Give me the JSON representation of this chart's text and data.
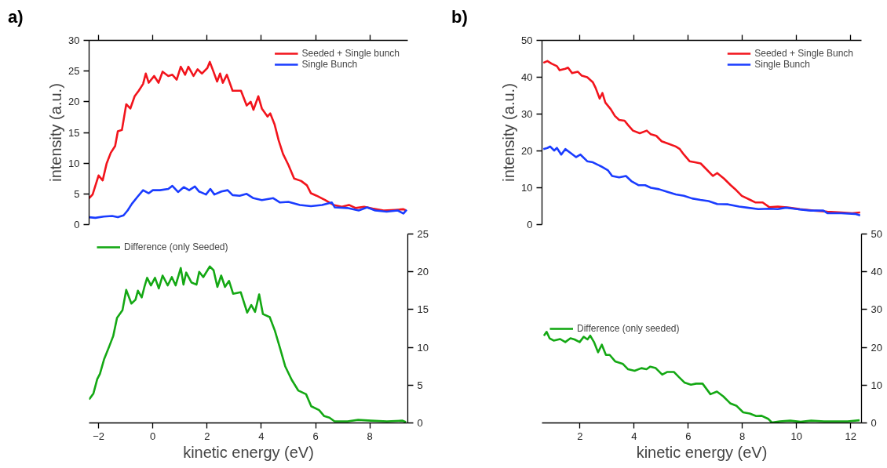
{
  "chart_data": [
    {
      "type": "line",
      "title": "a)",
      "ylabel": "intensity (a.u.)",
      "xlim": [
        -2.35,
        9.4
      ],
      "xticks": [
        -2,
        0,
        2,
        4,
        6,
        8
      ],
      "ylim": [
        0,
        30
      ],
      "yticks": [
        0,
        5,
        10,
        15,
        20,
        25,
        30
      ],
      "tick_labels": "y",
      "legend": "top right",
      "series": [
        {
          "name": "Seeded + Single bunch",
          "color": "#f2141c",
          "x": [
            -2.35,
            -2.22,
            -2.0,
            -1.85,
            -1.7,
            -1.55,
            -1.39,
            -1.29,
            -1.14,
            -0.98,
            -0.83,
            -0.67,
            -0.52,
            -0.36,
            -0.26,
            -0.15,
            0.05,
            0.21,
            0.36,
            0.57,
            0.72,
            0.88,
            1.03,
            1.19,
            1.31,
            1.5,
            1.65,
            1.81,
            2.01,
            2.1,
            2.22,
            2.37,
            2.48,
            2.58,
            2.73,
            2.94,
            3.25,
            3.46,
            3.61,
            3.71,
            3.89,
            4.02,
            4.23,
            4.33,
            4.49,
            4.64,
            4.8,
            5.0,
            5.21,
            5.47,
            5.68,
            5.83,
            6.04,
            6.35,
            6.66,
            6.97,
            7.23,
            7.48,
            7.79,
            8.1,
            8.51,
            8.93,
            9.24,
            9.34
          ],
          "values": [
            4.3,
            4.9,
            8.0,
            7.2,
            10.0,
            11.7,
            12.8,
            15.2,
            15.4,
            19.6,
            18.9,
            20.9,
            21.8,
            22.9,
            24.6,
            23.1,
            24.2,
            23.1,
            24.9,
            24.2,
            24.4,
            23.6,
            25.7,
            24.4,
            25.7,
            24.2,
            25.3,
            24.6,
            25.5,
            26.5,
            25.1,
            23.3,
            24.6,
            23.1,
            24.4,
            21.8,
            21.8,
            19.4,
            20.0,
            18.7,
            20.9,
            18.9,
            17.6,
            18.1,
            16.3,
            13.7,
            11.5,
            9.7,
            7.5,
            7.1,
            6.4,
            5.1,
            4.7,
            4.0,
            3.2,
            2.9,
            3.2,
            2.7,
            2.9,
            2.6,
            2.3,
            2.4,
            2.5,
            2.3
          ]
        },
        {
          "name": "Single Bunch",
          "color": "#1a3cff",
          "x": [
            -2.35,
            -2.12,
            -1.81,
            -1.5,
            -1.29,
            -1.08,
            -0.93,
            -0.77,
            -0.57,
            -0.36,
            -0.15,
            0.0,
            0.26,
            0.57,
            0.72,
            0.93,
            1.14,
            1.34,
            1.55,
            1.7,
            1.96,
            2.12,
            2.27,
            2.53,
            2.76,
            2.94,
            3.2,
            3.46,
            3.71,
            4.02,
            4.44,
            4.69,
            5.0,
            5.42,
            5.83,
            6.24,
            6.6,
            6.71,
            7.17,
            7.59,
            7.9,
            8.2,
            8.62,
            9.03,
            9.24,
            9.36
          ],
          "values": [
            1.2,
            1.1,
            1.3,
            1.4,
            1.2,
            1.5,
            2.3,
            3.4,
            4.5,
            5.6,
            5.1,
            5.6,
            5.6,
            5.8,
            6.3,
            5.3,
            6.1,
            5.6,
            6.2,
            5.4,
            4.9,
            5.8,
            4.9,
            5.4,
            5.6,
            4.8,
            4.7,
            5.0,
            4.3,
            4.0,
            4.3,
            3.6,
            3.7,
            3.2,
            3.0,
            3.2,
            3.6,
            2.8,
            2.7,
            2.3,
            2.8,
            2.3,
            2.1,
            2.3,
            1.8,
            2.4
          ]
        }
      ]
    },
    {
      "type": "line",
      "xlabel": "kinetic energy (eV)",
      "xlim": [
        -2.35,
        9.4
      ],
      "xticks": [
        -2,
        0,
        2,
        4,
        6,
        8
      ],
      "y2lim": [
        0,
        25
      ],
      "y2ticks": [
        0,
        5,
        10,
        15,
        20,
        25
      ],
      "legend": "top left",
      "series": [
        {
          "name": "Difference (only Seeded)",
          "color": "#14a814",
          "axis": "y2",
          "x": [
            -2.35,
            -2.19,
            -2.05,
            -1.95,
            -1.8,
            -1.61,
            -1.46,
            -1.32,
            -1.12,
            -0.98,
            -0.79,
            -0.64,
            -0.55,
            -0.41,
            -0.31,
            -0.21,
            -0.07,
            0.08,
            0.22,
            0.36,
            0.55,
            0.7,
            0.84,
            1.03,
            1.13,
            1.23,
            1.42,
            1.61,
            1.71,
            1.86,
            2.1,
            2.24,
            2.38,
            2.52,
            2.66,
            2.81,
            2.96,
            3.24,
            3.48,
            3.63,
            3.77,
            3.92,
            4.06,
            4.31,
            4.5,
            4.69,
            4.88,
            5.12,
            5.36,
            5.65,
            5.84,
            6.13,
            6.32,
            6.51,
            6.7,
            7.18,
            7.57,
            8.05,
            8.63,
            9.21,
            9.33
          ],
          "values": [
            3.1,
            3.9,
            5.8,
            6.5,
            8.4,
            10.1,
            11.5,
            13.9,
            14.9,
            17.6,
            15.8,
            16.3,
            17.5,
            16.6,
            18.0,
            19.2,
            18.2,
            19.2,
            17.8,
            19.5,
            18.2,
            19.3,
            18.2,
            20.5,
            18.3,
            19.9,
            18.6,
            18.3,
            20.0,
            19.3,
            20.7,
            20.2,
            18.0,
            19.5,
            18.0,
            18.8,
            17.1,
            17.3,
            14.6,
            15.6,
            14.7,
            17.0,
            14.4,
            14.0,
            12.2,
            9.9,
            7.5,
            5.7,
            4.3,
            3.8,
            2.2,
            1.7,
            0.9,
            0.7,
            0.2,
            0.2,
            0.4,
            0.3,
            0.2,
            0.3,
            0.1
          ]
        }
      ]
    },
    {
      "type": "line",
      "title": "b)",
      "ylabel": "intensity (a.u.)",
      "xlim": [
        0.6,
        12.4
      ],
      "xticks": [
        2,
        4,
        6,
        8,
        10,
        12
      ],
      "ylim": [
        0,
        50
      ],
      "yticks": [
        0,
        10,
        20,
        30,
        40,
        50
      ],
      "tick_labels": "y",
      "legend": "top right",
      "series": [
        {
          "name": "Seeded + Single Bunch",
          "color": "#f2141c",
          "x": [
            0.65,
            0.8,
            0.95,
            1.15,
            1.25,
            1.46,
            1.56,
            1.71,
            1.92,
            2.07,
            2.27,
            2.48,
            2.58,
            2.73,
            2.83,
            2.94,
            3.14,
            3.29,
            3.45,
            3.65,
            3.78,
            3.96,
            4.21,
            4.47,
            4.62,
            4.82,
            5.02,
            5.28,
            5.54,
            5.69,
            5.84,
            6.05,
            6.25,
            6.46,
            6.66,
            6.91,
            7.07,
            7.32,
            7.57,
            7.78,
            7.98,
            8.29,
            8.49,
            8.75,
            9.0,
            9.31,
            9.72,
            10.12,
            10.63,
            11.14,
            11.65,
            12.06,
            12.35
          ],
          "values": [
            43.9,
            44.4,
            43.7,
            43.0,
            41.9,
            42.3,
            42.6,
            41.1,
            41.5,
            40.4,
            40.0,
            38.6,
            37.1,
            34.2,
            35.7,
            33.1,
            31.3,
            29.5,
            28.4,
            28.2,
            27.0,
            25.5,
            24.8,
            25.5,
            24.5,
            24.1,
            22.6,
            21.9,
            21.2,
            20.5,
            19.0,
            17.2,
            16.9,
            16.6,
            15.1,
            13.2,
            14.0,
            12.5,
            10.7,
            9.3,
            7.8,
            6.7,
            6.0,
            6.0,
            4.7,
            4.9,
            4.6,
            4.2,
            3.8,
            3.5,
            3.3,
            3.1,
            3.3
          ]
        },
        {
          "name": "Single Bunch",
          "color": "#1a3cff",
          "x": [
            0.65,
            0.8,
            0.9,
            1.05,
            1.15,
            1.31,
            1.46,
            1.66,
            1.86,
            2.02,
            2.27,
            2.48,
            2.78,
            3.04,
            3.19,
            3.45,
            3.7,
            3.9,
            4.16,
            4.41,
            4.62,
            4.92,
            5.23,
            5.54,
            5.84,
            6.14,
            6.45,
            6.75,
            7.07,
            7.47,
            7.88,
            8.18,
            8.59,
            9.0,
            9.31,
            9.61,
            10.02,
            10.53,
            10.99,
            11.14,
            11.65,
            12.16,
            12.35
          ],
          "values": [
            20.5,
            20.8,
            21.2,
            20.1,
            20.8,
            19.0,
            20.5,
            19.4,
            18.3,
            19.0,
            17.2,
            16.9,
            15.8,
            14.7,
            13.2,
            12.8,
            13.2,
            11.8,
            10.7,
            10.7,
            10.0,
            9.6,
            8.9,
            8.2,
            7.8,
            7.1,
            6.7,
            6.4,
            5.6,
            5.5,
            4.9,
            4.6,
            4.2,
            4.3,
            4.2,
            4.6,
            4.2,
            3.8,
            3.8,
            3.1,
            3.1,
            2.9,
            2.5
          ]
        }
      ]
    },
    {
      "type": "line",
      "xlabel": "kinetic energy (eV)",
      "xlim": [
        0.6,
        12.4
      ],
      "xticks": [
        2,
        4,
        6,
        8,
        10,
        12
      ],
      "y2lim": [
        0,
        50
      ],
      "y2ticks": [
        0,
        10,
        20,
        30,
        40,
        50
      ],
      "legend": "left",
      "series": [
        {
          "name": "Difference (only seeded)",
          "color": "#14a814",
          "axis": "y2",
          "x": [
            0.67,
            0.77,
            0.88,
            1.03,
            1.27,
            1.46,
            1.65,
            1.8,
            1.99,
            2.14,
            2.28,
            2.38,
            2.52,
            2.67,
            2.81,
            2.96,
            3.1,
            3.3,
            3.59,
            3.78,
            4.02,
            4.27,
            4.46,
            4.6,
            4.8,
            5.04,
            5.23,
            5.47,
            5.66,
            5.86,
            6.1,
            6.29,
            6.53,
            6.82,
            7.06,
            7.3,
            7.55,
            7.79,
            8.03,
            8.27,
            8.51,
            8.71,
            8.95,
            9.09,
            9.38,
            9.77,
            10.15,
            10.54,
            11.02,
            11.5,
            11.89,
            12.33
          ],
          "values": [
            23.1,
            24.1,
            22.4,
            21.8,
            22.2,
            21.4,
            22.4,
            22.1,
            21.4,
            22.8,
            22.1,
            23.1,
            21.4,
            18.7,
            20.7,
            18.0,
            18.0,
            16.3,
            15.6,
            14.2,
            13.8,
            14.5,
            14.2,
            14.9,
            14.5,
            12.8,
            13.5,
            13.5,
            12.1,
            10.7,
            10.1,
            10.4,
            10.4,
            7.6,
            8.3,
            7.0,
            5.2,
            4.5,
            2.8,
            2.5,
            1.8,
            1.9,
            1.1,
            0.1,
            0.4,
            0.6,
            0.3,
            0.6,
            0.4,
            0.4,
            0.4,
            0.7
          ]
        }
      ]
    }
  ]
}
